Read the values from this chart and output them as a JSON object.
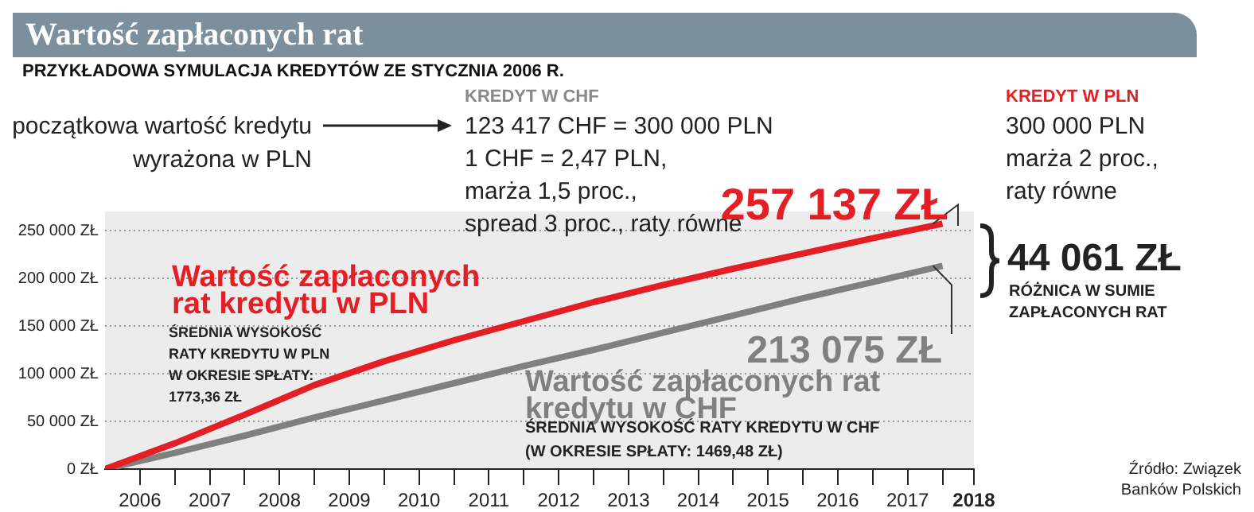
{
  "chart_data": {
    "type": "line",
    "title": "Wartość zapłaconych rat",
    "subtitle": "PRZYKŁADOWA SYMULACJA KREDYTÓW ZE STYCZNIA 2006 R.",
    "x": [
      2006,
      2007,
      2008,
      2009,
      2010,
      2011,
      2012,
      2013,
      2014,
      2015,
      2016,
      2017,
      2018
    ],
    "series": [
      {
        "name": "Wartość zapłaconych rat kredytu w PLN",
        "color": "#e31e24",
        "values": [
          0,
          27000,
          57000,
          88000,
          113000,
          135000,
          155000,
          175000,
          193000,
          210000,
          226000,
          242000,
          257137
        ]
      },
      {
        "name": "Wartość zapłaconych rat kredytu w CHF",
        "color": "#808080",
        "values": [
          0,
          17000,
          35000,
          54000,
          72000,
          90000,
          108000,
          125000,
          143000,
          161000,
          179000,
          196000,
          213075
        ]
      }
    ],
    "xlim": [
      2006,
      2018.45
    ],
    "xticks": [
      {
        "value": 2006.5,
        "label": "2006"
      },
      {
        "value": 2007,
        "label": null
      },
      {
        "value": 2007.5,
        "label": "2007"
      },
      {
        "value": 2008,
        "label": null
      },
      {
        "value": 2008.5,
        "label": "2008"
      },
      {
        "value": 2009,
        "label": null
      },
      {
        "value": 2009.5,
        "label": "2009"
      },
      {
        "value": 2010,
        "label": null
      },
      {
        "value": 2010.5,
        "label": "2010"
      },
      {
        "value": 2011,
        "label": null
      },
      {
        "value": 2011.5,
        "label": "2011"
      },
      {
        "value": 2012,
        "label": null
      },
      {
        "value": 2012.5,
        "label": "2012"
      },
      {
        "value": 2013,
        "label": null
      },
      {
        "value": 2013.5,
        "label": "2013"
      },
      {
        "value": 2014,
        "label": null
      },
      {
        "value": 2014.5,
        "label": "2014"
      },
      {
        "value": 2015,
        "label": null
      },
      {
        "value": 2015.5,
        "label": "2015"
      },
      {
        "value": 2016,
        "label": null
      },
      {
        "value": 2016.5,
        "label": "2016"
      },
      {
        "value": 2017,
        "label": null
      },
      {
        "value": 2017.5,
        "label": "2017"
      },
      {
        "value": 2018,
        "label": null
      },
      {
        "value": 2018.45,
        "label": "2018"
      }
    ],
    "ylim": [
      0,
      270000
    ],
    "yticks": [
      {
        "value": 0,
        "label": "0 ZŁ"
      },
      {
        "value": 50000,
        "label": "50 000 ZŁ"
      },
      {
        "value": 100000,
        "label": "100 000 ZŁ"
      },
      {
        "value": 150000,
        "label": "150 000 ZŁ"
      },
      {
        "value": 200000,
        "label": "200 000 ZŁ"
      },
      {
        "value": 250000,
        "label": "250 000 ZŁ"
      }
    ],
    "grid": "y",
    "legend": false,
    "marker": "none",
    "annotations": [
      "początkowa wartość kredytu\nwyrażona w PLN",
      "KREDYT W CHF",
      "123 417 CHF = 300 000 PLN\n1 CHF = 2,47 PLN,\nmarża 1,5 proc.,\nspread 3 proc., raty równe",
      "KREDYT W PLN",
      "300 000 PLN\nmarża 2 proc.,\nraty równe",
      {
        "text": "257 137 ZŁ",
        "x": 2018,
        "y": 257137
      },
      {
        "text": "213 075 ZŁ",
        "x": 2018,
        "y": 213075
      },
      "44 061 ZŁ",
      "RÓŻNICA W SUMIE\nZAPŁACONYCH RAT",
      "ŚREDNIA WYSOKOŚĆ\nRATY KREDYTU W PLN\nW OKRESIE SPŁATY:\n1773,36 ZŁ",
      "ŚREDNIA WYSOKOŚĆ RATY KREDYTU W CHF\n(W OKRESIE SPŁATY: 1469,48 ZŁ)",
      "Źródło: Związek\nBanków Polskich"
    ]
  }
}
